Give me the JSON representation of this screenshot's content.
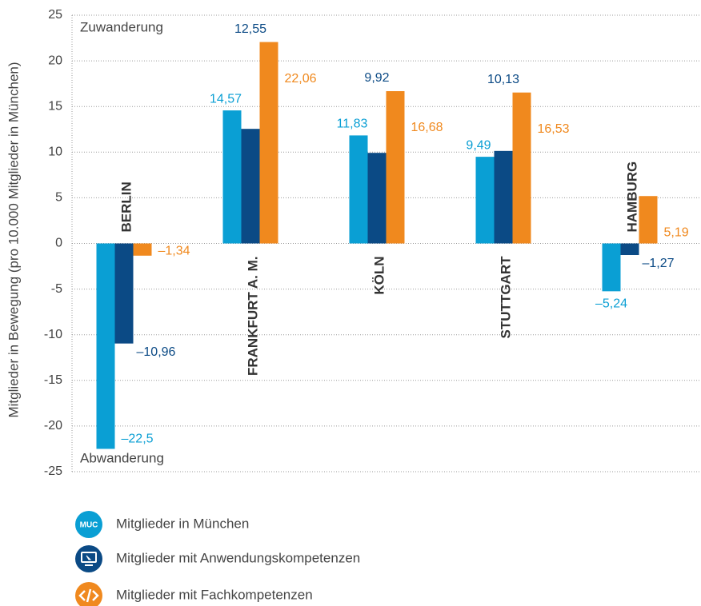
{
  "chart_data": {
    "type": "bar",
    "y_label": "Mitglieder in Bewegung (pro 10.000 Mitglieder in München)",
    "annotations": [
      "Zuwanderung",
      "Abwanderung"
    ],
    "categories": [
      "BERLIN",
      "FRANKFURT A. M.",
      "KÖLN",
      "STUTTGART",
      "HAMBURG"
    ],
    "series": [
      {
        "name": "Mitglieder in München",
        "icon_label": "MUC",
        "color": "#0a9fd4",
        "values": [
          -22.5,
          14.57,
          11.83,
          9.49,
          -5.24
        ],
        "value_labels": [
          "–22,5",
          "14,57",
          "11,83",
          "9,49",
          "–5,24"
        ]
      },
      {
        "name": "Mitglieder mit Anwendungskompetenzen",
        "color": "#0b4a85",
        "values": [
          -10.96,
          12.55,
          9.92,
          10.13,
          -1.27
        ],
        "value_labels": [
          "–10,96",
          "12,55",
          "9,92",
          "10,13",
          "–1,27"
        ]
      },
      {
        "name": "Mitglieder mit Fachkompetenzen",
        "color": "#f0891e",
        "values": [
          -1.34,
          22.06,
          16.68,
          16.53,
          5.19
        ],
        "value_labels": [
          "–1,34",
          "22,06",
          "16,68",
          "16,53",
          "5,19"
        ]
      }
    ],
    "ylim": [
      -25,
      25
    ],
    "yticks": [
      -25,
      -20,
      -15,
      -10,
      -5,
      0,
      5,
      10,
      15,
      20,
      25
    ],
    "grid": true
  }
}
